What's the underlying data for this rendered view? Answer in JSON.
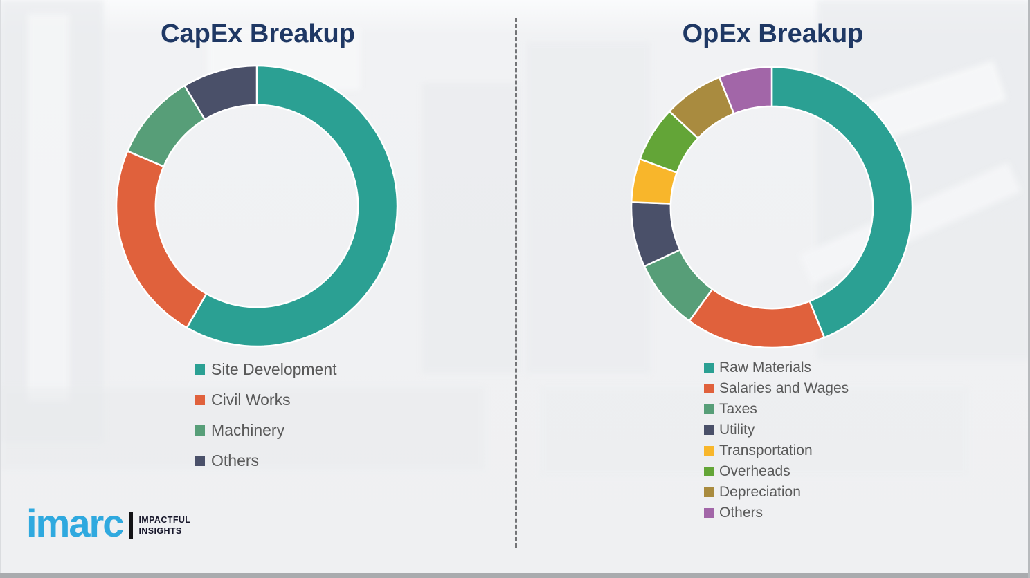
{
  "page": {
    "background_color": "#EFF0F2",
    "divider_style": "vertical-dashed",
    "divider_color": "#737477",
    "bottom_bar_color": "#A9ABAE",
    "title_color": "#1F3864",
    "legend_text_color": "#595959"
  },
  "branding": {
    "logo_text": "imarc",
    "logo_color": "#2FA9DF",
    "tagline_line1": "IMPACTFUL",
    "tagline_line2": "INSIGHTS",
    "tagline_color": "#17172B"
  },
  "chart_data": [
    {
      "type": "pie",
      "variant": "donut",
      "title": "CapEx Breakup",
      "start_angle": "top",
      "direction": "clockwise",
      "inner_radius_ratio": 0.72,
      "legend_position": "below-left",
      "segments": [
        {
          "label": "Site Development",
          "color": "#2BA093",
          "percent": 58.3
        },
        {
          "label": "Civil Works",
          "color": "#E0613C",
          "percent": 23.1
        },
        {
          "label": "Machinery",
          "color": "#579E78",
          "percent": 10.0
        },
        {
          "label": "Others",
          "color": "#4A5069",
          "percent": 8.6
        }
      ]
    },
    {
      "type": "pie",
      "variant": "donut",
      "title": "OpEx Breakup",
      "start_angle": "top",
      "direction": "clockwise",
      "inner_radius_ratio": 0.72,
      "legend_position": "below-left",
      "segments": [
        {
          "label": "Raw Materials",
          "color": "#2BA093",
          "percent": 43.9
        },
        {
          "label": "Salaries and Wages",
          "color": "#E0613C",
          "percent": 16.1
        },
        {
          "label": "Taxes",
          "color": "#579E78",
          "percent": 8.1
        },
        {
          "label": "Utility",
          "color": "#4A5069",
          "percent": 7.5
        },
        {
          "label": "Transportation",
          "color": "#F8B62B",
          "percent": 5.0
        },
        {
          "label": "Overheads",
          "color": "#63A537",
          "percent": 6.4
        },
        {
          "label": "Depreciation",
          "color": "#A98B3F",
          "percent": 6.9
        },
        {
          "label": "Others",
          "color": "#A266A8",
          "percent": 6.1
        }
      ]
    }
  ]
}
